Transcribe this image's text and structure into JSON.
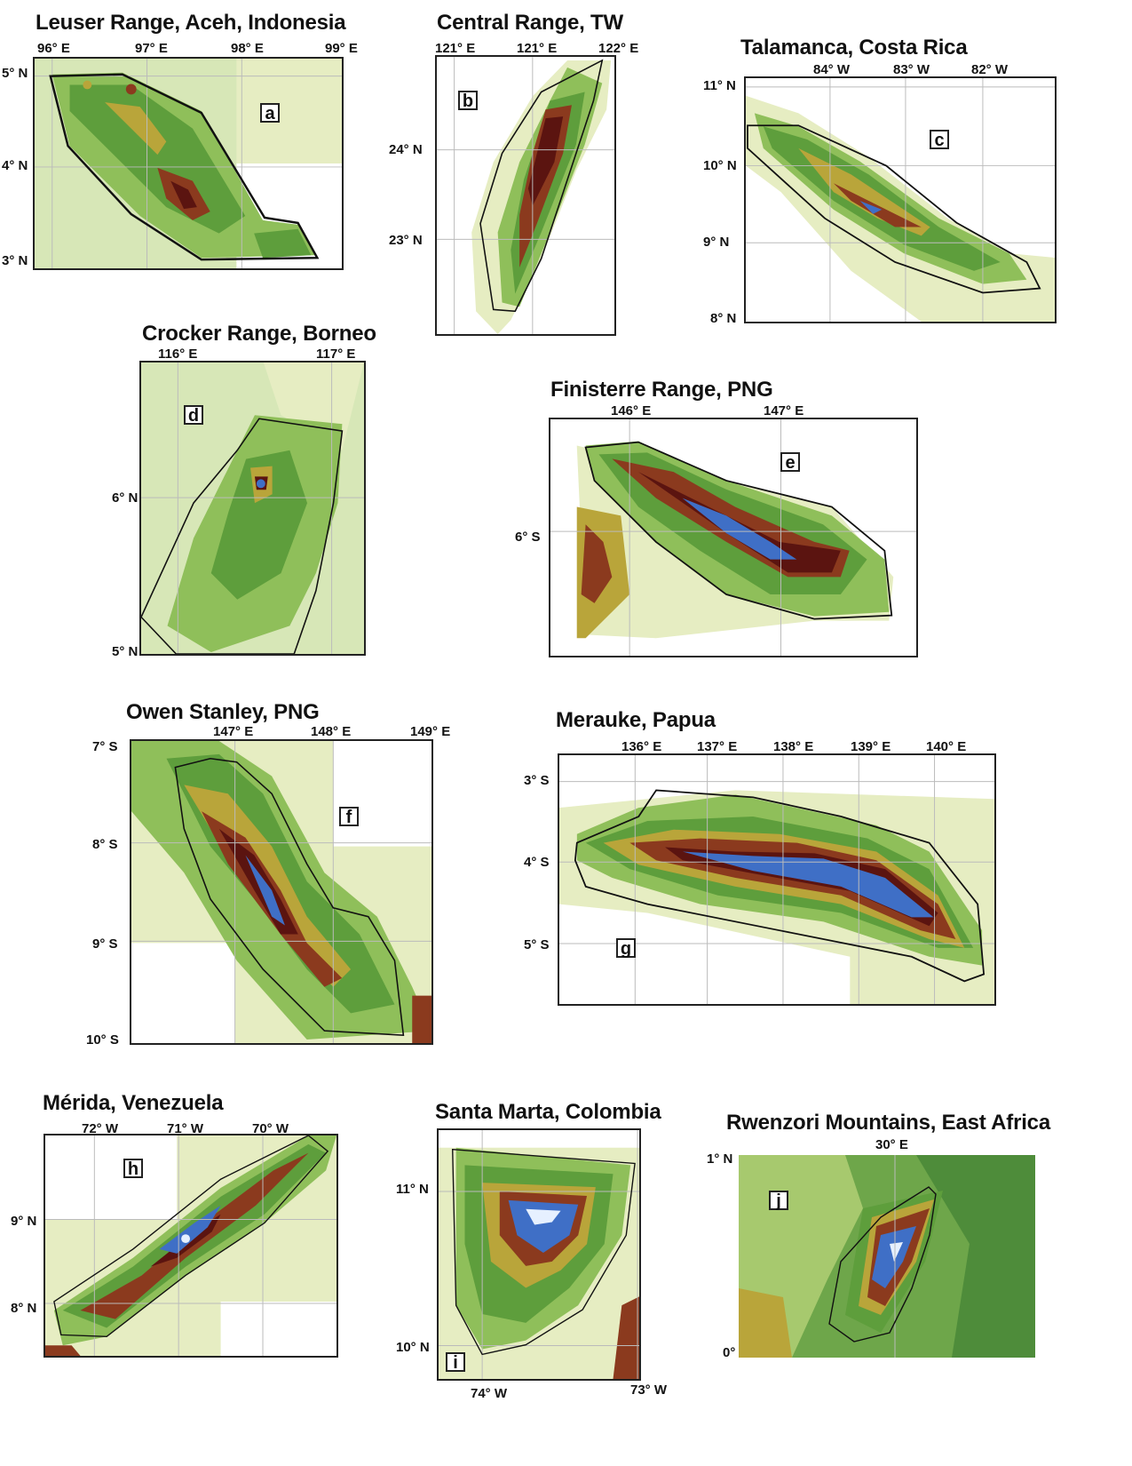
{
  "maps": [
    {
      "id": "a",
      "title": "Leuser Range, Aceh, Indonesia",
      "x_ticks": [
        "96° E",
        "97° E",
        "98° E",
        "99° E"
      ],
      "y_ticks": [
        "5° N",
        "4° N",
        "3° N"
      ]
    },
    {
      "id": "b",
      "title": "Central Range, TW",
      "x_ticks": [
        "121° E",
        "121° E",
        "122° E"
      ],
      "y_ticks": [
        "24° N",
        "23° N"
      ]
    },
    {
      "id": "c",
      "title": "Talamanca, Costa Rica",
      "x_ticks": [
        "84° W",
        "83° W",
        "82° W"
      ],
      "y_ticks": [
        "11° N",
        "10° N",
        "9° N",
        "8° N"
      ]
    },
    {
      "id": "d",
      "title": "Crocker Range, Borneo",
      "x_ticks": [
        "116° E",
        "117° E"
      ],
      "y_ticks": [
        "6° N",
        "5° N"
      ]
    },
    {
      "id": "e",
      "title": "Finisterre Range, PNG",
      "x_ticks": [
        "146° E",
        "147° E"
      ],
      "y_ticks": [
        "6° S"
      ]
    },
    {
      "id": "f",
      "title": "Owen Stanley, PNG",
      "x_ticks": [
        "147° E",
        "148° E",
        "149° E"
      ],
      "y_ticks": [
        "7° S",
        "8° S",
        "9° S",
        "10° S"
      ]
    },
    {
      "id": "g",
      "title": "Merauke, Papua",
      "x_ticks": [
        "136° E",
        "137° E",
        "138° E",
        "139° E",
        "140° E"
      ],
      "y_ticks": [
        "3° S",
        "4° S",
        "5° S"
      ]
    },
    {
      "id": "h",
      "title": "Mérida, Venezuela",
      "x_ticks": [
        "72° W",
        "71° W",
        "70° W"
      ],
      "y_ticks": [
        "9° N",
        "8° N"
      ]
    },
    {
      "id": "i",
      "title": "Santa Marta, Colombia",
      "x_ticks": [
        "74° W",
        "73° W"
      ],
      "y_ticks": [
        "11° N",
        "10° N"
      ]
    },
    {
      "id": "j",
      "title": "Rwenzori Mountains, East Africa",
      "x_ticks": [
        "30° E"
      ],
      "y_ticks": [
        "1° N",
        "0°"
      ]
    }
  ],
  "colors": {
    "lowland": "#e6edc2",
    "sea_land": "#cfe3b0",
    "green": "#5e9e3c",
    "mid_green": "#8fbf5a",
    "olive": "#b9a53a",
    "brown": "#8b3a1e",
    "dark_brown": "#5b1410",
    "blue": "#3f6fc6",
    "peak": "#e6f0ff",
    "outline": "#111111",
    "grid": "#bbbbbb"
  }
}
